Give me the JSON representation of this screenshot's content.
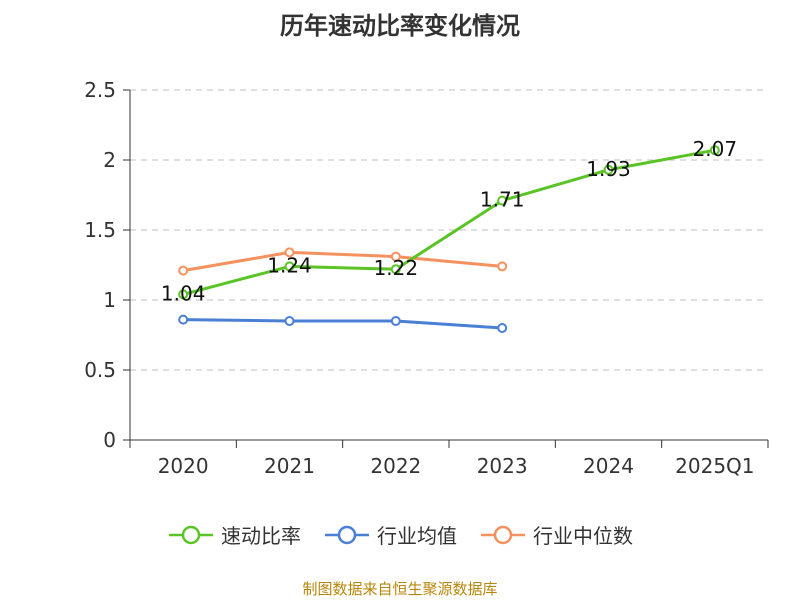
{
  "chart_data": {
    "type": "line",
    "title": "历年速动比率变化情况",
    "categories": [
      "2020",
      "2021",
      "2022",
      "2023",
      "2024",
      "2025Q1"
    ],
    "ylim": [
      0,
      2.5
    ],
    "yticks": [
      "0",
      "0.5",
      "1",
      "1.5",
      "2",
      "2.5"
    ],
    "grid": true,
    "legend_position": "bottom",
    "series": [
      {
        "name": "速动比率",
        "color": "#5ac426",
        "values": [
          1.04,
          1.24,
          1.22,
          1.71,
          1.93,
          2.07
        ],
        "labels": [
          "1.04",
          "1.24",
          "1.22",
          "1.71",
          "1.93",
          "2.07"
        ]
      },
      {
        "name": "行业均值",
        "color": "#4a7fd6",
        "values": [
          0.86,
          0.85,
          0.85,
          0.8,
          null,
          null
        ]
      },
      {
        "name": "行业中位数",
        "color": "#f5915f",
        "values": [
          1.21,
          1.34,
          1.31,
          1.24,
          null,
          null
        ]
      }
    ]
  },
  "source_text": "制图数据来自恒生聚源数据库"
}
